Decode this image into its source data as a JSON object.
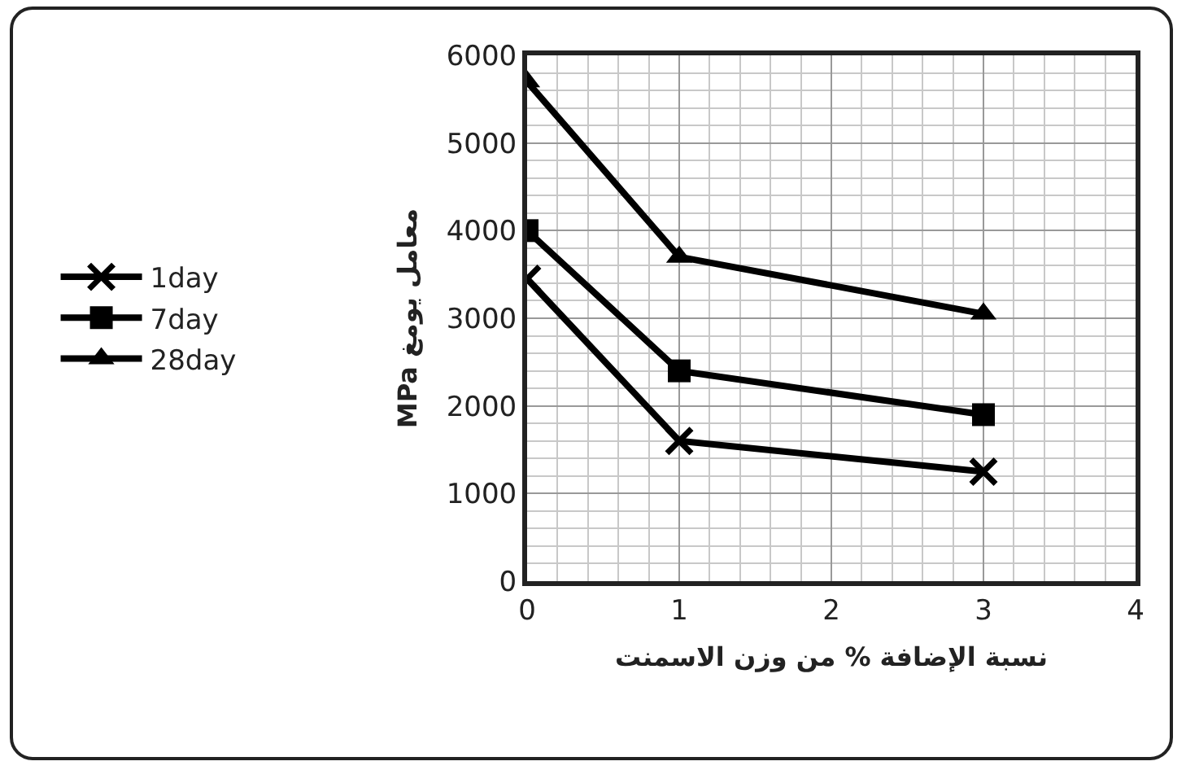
{
  "chart_data": {
    "type": "line",
    "xlabel": "نسبة الإضافة % من وزن الاسمنت",
    "ylabel": "MPa معامل يومغ",
    "xlim": [
      0,
      4
    ],
    "xticks": [
      0,
      1,
      2,
      3,
      4
    ],
    "ylim": [
      0,
      6000
    ],
    "yticks": [
      0,
      1000,
      2000,
      3000,
      4000,
      5000,
      6000
    ],
    "grid": true,
    "legend": "left",
    "series": [
      {
        "name": "1day",
        "color": "#000000",
        "marker": "cross",
        "x": [
          0,
          1,
          3
        ],
        "values": [
          3450,
          1600,
          1250
        ]
      },
      {
        "name": "7day",
        "color": "#000000",
        "marker": "square",
        "x": [
          0,
          1,
          3
        ],
        "values": [
          4000,
          2400,
          1900
        ]
      },
      {
        "name": "28day",
        "color": "#000000",
        "marker": "triangle",
        "x": [
          0,
          1,
          3
        ],
        "values": [
          5700,
          3700,
          3050
        ]
      }
    ]
  }
}
